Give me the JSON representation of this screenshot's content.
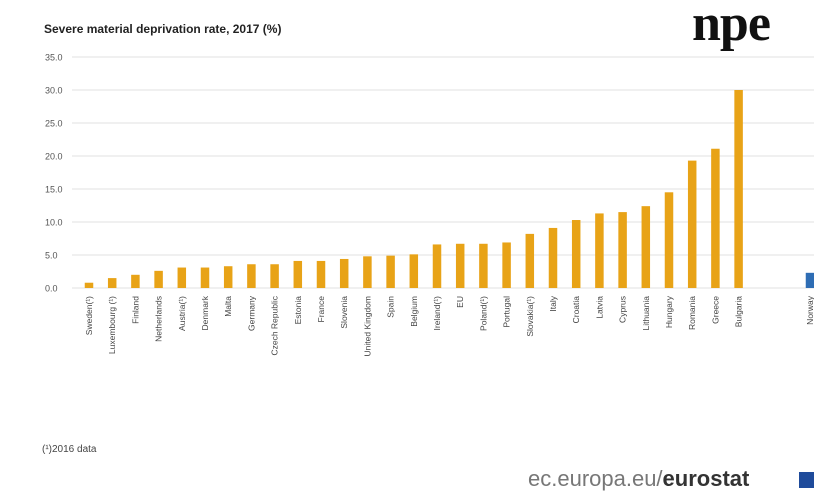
{
  "header": {
    "overlay_text": "npe"
  },
  "chart_data": {
    "type": "bar",
    "title": "Severe material deprivation rate, 2017 (%)",
    "categories": [
      "Sweden(¹)",
      "Luxembourg (¹)",
      "Finland",
      "Netherlands",
      "Austria(¹)",
      "Denmark",
      "Malta",
      "Germany",
      "Czech Republic",
      "Estonia",
      "France",
      "Slovenia",
      "United Kingdom",
      "Spain",
      "Belgium",
      "Ireland(¹)",
      "EU",
      "Poland(¹)",
      "Portugal",
      "Slovakia(¹)",
      "Italy",
      "Croatia",
      "Latvia",
      "Cyprus",
      "Lithuania",
      "Hungary",
      "Romania",
      "Greece",
      "Bulgaria",
      "Norway"
    ],
    "values": [
      0.8,
      1.5,
      2.0,
      2.6,
      3.1,
      3.1,
      3.3,
      3.6,
      3.6,
      4.1,
      4.1,
      4.4,
      4.8,
      4.9,
      5.1,
      6.6,
      6.7,
      6.7,
      6.9,
      8.2,
      9.1,
      10.3,
      11.3,
      11.5,
      12.4,
      14.5,
      19.3,
      21.1,
      30.0,
      2.3
    ],
    "bar_colors": [
      "#e8a317",
      "#e8a317",
      "#e8a317",
      "#e8a317",
      "#e8a317",
      "#e8a317",
      "#e8a317",
      "#e8a317",
      "#e8a317",
      "#e8a317",
      "#e8a317",
      "#e8a317",
      "#e8a317",
      "#e8a317",
      "#e8a317",
      "#e8a317",
      "#e8a317",
      "#e8a317",
      "#e8a317",
      "#e8a317",
      "#e8a317",
      "#e8a317",
      "#e8a317",
      "#e8a317",
      "#e8a317",
      "#e8a317",
      "#e8a317",
      "#e8a317",
      "#e8a317",
      "#2e6db4"
    ],
    "yticks": [
      "0.0",
      "5.0",
      "10.0",
      "15.0",
      "20.0",
      "25.0",
      "30.0",
      "35.0"
    ],
    "ylim": [
      0,
      35
    ],
    "grid": true,
    "xlabel": "",
    "ylabel": ""
  },
  "footnote": "(¹)2016 data",
  "footer": {
    "site": "ec.europa.eu/",
    "brand": "eurostat"
  }
}
